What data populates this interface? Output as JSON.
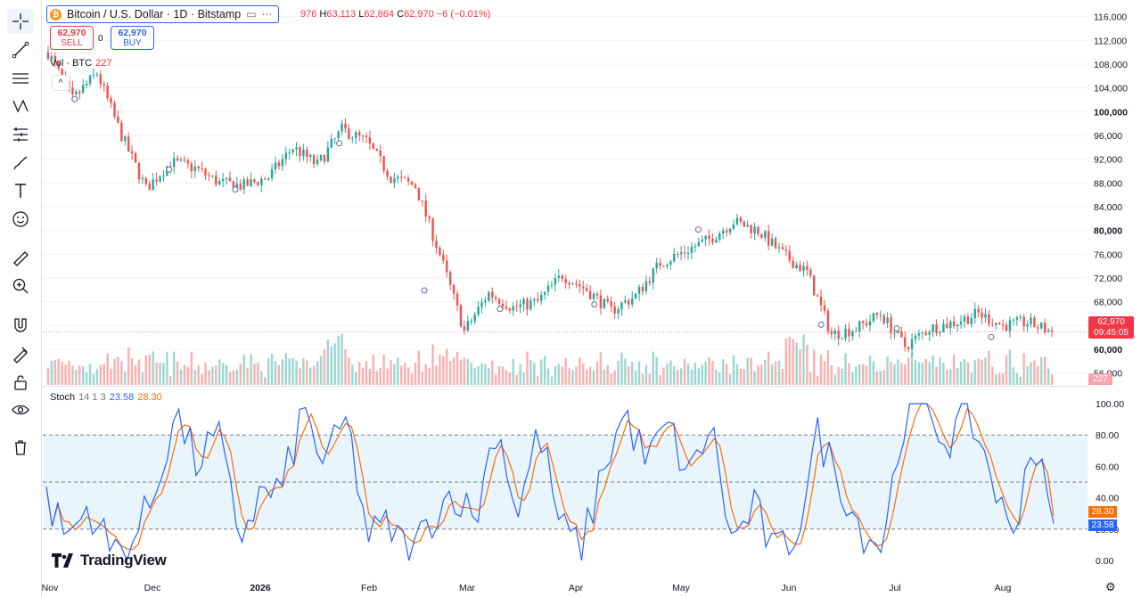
{
  "symbol": {
    "title": "Bitcoin / U.S. Dollar · 1D · Bitstamp",
    "coin_icon": "bitcoin-icon",
    "ohlc": {
      "o_label": "",
      "o": "976",
      "h_label": "H",
      "h": "63,113",
      "l_label": "L",
      "l": "62,864",
      "c_label": "C",
      "c": "62,970",
      "change": "−6 (−0.01%)"
    }
  },
  "trade": {
    "sell_price": "62,970",
    "sell_label": "SELL",
    "buy_price": "62,970",
    "buy_label": "BUY",
    "spread": "0"
  },
  "volume_legend": {
    "label": "Vol · BTC",
    "value": "227"
  },
  "stoch_legend": {
    "label": "Stoch",
    "params": "14 1 3",
    "k_value": "23.58",
    "d_value": "28.30"
  },
  "badges": {
    "price": "62,970",
    "countdown": "09:45:05",
    "volume": "227",
    "k": "23.58",
    "d": "28.30"
  },
  "brand": "TradingView",
  "toolbar_icons": [
    "crosshair-icon",
    "trend-line-icon",
    "fib-icon",
    "pattern-icon",
    "measure-tools-icon",
    "brush-icon",
    "text-icon",
    "emoji-icon",
    "ruler-icon",
    "zoom-in-icon",
    "magnet-icon",
    "lock-drawings-icon",
    "lock-icon",
    "eye-icon",
    "trash-icon"
  ],
  "colors": {
    "up": "#26a69a",
    "down": "#ef5350",
    "k_line": "#2962ff",
    "d_line": "#ff6d00",
    "band": "#e3f2fd",
    "grid": "#f0f3fa"
  },
  "chart_data": {
    "type": "candlestick",
    "timeframe": "1D",
    "price_axis": {
      "ticks": [
        "116,000",
        "112,000",
        "108,000",
        "104,000",
        "100,000",
        "96,000",
        "92,000",
        "88,000",
        "84,000",
        "80,000",
        "76,000",
        "72,000",
        "68,000",
        "64,000",
        "60,000",
        "56,000"
      ],
      "range": [
        54000,
        117000
      ]
    },
    "time_axis": {
      "labels": [
        "Nov",
        "Dec",
        "2026",
        "Feb",
        "Mar",
        "Apr",
        "May",
        "Jun",
        "Jul",
        "Aug"
      ]
    },
    "price_path": [
      {
        "date": "Nov",
        "price": 110000
      },
      {
        "date": "Nov",
        "price": 102000
      },
      {
        "date": "Nov",
        "price": 106500
      },
      {
        "date": "Nov",
        "price": 96000
      },
      {
        "date": "Nov",
        "price": 87000
      },
      {
        "date": "Dec",
        "price": 91500
      },
      {
        "date": "Dec",
        "price": 90500
      },
      {
        "date": "Dec",
        "price": 88000
      },
      {
        "date": "Dec",
        "price": 87500
      },
      {
        "date": "2026",
        "price": 89000
      },
      {
        "date": "2026",
        "price": 94000
      },
      {
        "date": "2026",
        "price": 91000
      },
      {
        "date": "2026",
        "price": 97000
      },
      {
        "date": "2026",
        "price": 95000
      },
      {
        "date": "2026",
        "price": 89000
      },
      {
        "date": "2026",
        "price": 87500
      },
      {
        "date": "Feb",
        "price": 76000
      },
      {
        "date": "Feb",
        "price": 63000
      },
      {
        "date": "Feb",
        "price": 69500
      },
      {
        "date": "Feb",
        "price": 67000
      },
      {
        "date": "Mar",
        "price": 68000
      },
      {
        "date": "Mar",
        "price": 72500
      },
      {
        "date": "Mar",
        "price": 70000
      },
      {
        "date": "Mar",
        "price": 66500
      },
      {
        "date": "Apr",
        "price": 69000
      },
      {
        "date": "Apr",
        "price": 74500
      },
      {
        "date": "Apr",
        "price": 76500
      },
      {
        "date": "Apr",
        "price": 78500
      },
      {
        "date": "May",
        "price": 81500
      },
      {
        "date": "May",
        "price": 80000
      },
      {
        "date": "May",
        "price": 76000
      },
      {
        "date": "May",
        "price": 73000
      },
      {
        "date": "Jun",
        "price": 62500
      },
      {
        "date": "Jun",
        "price": 63500
      },
      {
        "date": "Jun",
        "price": 66000
      },
      {
        "date": "Jun",
        "price": 60500
      },
      {
        "date": "Jul",
        "price": 63500
      },
      {
        "date": "Jul",
        "price": 64500
      },
      {
        "date": "Jul",
        "price": 66000
      },
      {
        "date": "Jul",
        "price": 64000
      },
      {
        "date": "Aug",
        "price": 64500
      },
      {
        "date": "Aug",
        "price": 62970
      }
    ],
    "volume_series": {
      "name": "Vol · BTC",
      "last": 227
    },
    "stochastic": {
      "params": [
        14,
        1,
        3
      ],
      "levels": [
        80,
        50,
        20
      ],
      "range": [
        0,
        100
      ],
      "ticks": [
        "100.00",
        "80.00",
        "60.00",
        "40.00",
        "20.00",
        "0.00"
      ],
      "k_path": [
        {
          "date": "Nov",
          "k": 38
        },
        {
          "date": "Nov",
          "k": 15
        },
        {
          "date": "Nov",
          "k": 35
        },
        {
          "date": "Nov",
          "k": 6
        },
        {
          "date": "Nov",
          "k": 12
        },
        {
          "date": "Dec",
          "k": 40
        },
        {
          "date": "Dec",
          "k": 95
        },
        {
          "date": "Dec",
          "k": 62
        },
        {
          "date": "Dec",
          "k": 80
        },
        {
          "date": "Dec",
          "k": 15
        },
        {
          "date": "2026",
          "k": 42
        },
        {
          "date": "2026",
          "k": 45
        },
        {
          "date": "2026",
          "k": 96
        },
        {
          "date": "2026",
          "k": 60
        },
        {
          "date": "2026",
          "k": 90
        },
        {
          "date": "2026",
          "k": 15
        },
        {
          "date": "Feb",
          "k": 22
        },
        {
          "date": "Feb",
          "k": 4
        },
        {
          "date": "Feb",
          "k": 28
        },
        {
          "date": "Feb",
          "k": 45
        },
        {
          "date": "Mar",
          "k": 25
        },
        {
          "date": "Mar",
          "k": 88
        },
        {
          "date": "Mar",
          "k": 30
        },
        {
          "date": "Mar",
          "k": 84
        },
        {
          "date": "Mar",
          "k": 20
        },
        {
          "date": "Apr",
          "k": 8
        },
        {
          "date": "Apr",
          "k": 60
        },
        {
          "date": "Apr",
          "k": 94
        },
        {
          "date": "Apr",
          "k": 62
        },
        {
          "date": "Apr",
          "k": 86
        },
        {
          "date": "May",
          "k": 52
        },
        {
          "date": "May",
          "k": 88
        },
        {
          "date": "May",
          "k": 10
        },
        {
          "date": "May",
          "k": 35
        },
        {
          "date": "May",
          "k": 3
        },
        {
          "date": "Jun",
          "k": 18
        },
        {
          "date": "Jun",
          "k": 80
        },
        {
          "date": "Jun",
          "k": 52
        },
        {
          "date": "Jun",
          "k": 20
        },
        {
          "date": "Jul",
          "k": 10
        },
        {
          "date": "Jul",
          "k": 90
        },
        {
          "date": "Jul",
          "k": 100
        },
        {
          "date": "Jul",
          "k": 75
        },
        {
          "date": "Jul",
          "k": 95
        },
        {
          "date": "Aug",
          "k": 60
        },
        {
          "date": "Aug",
          "k": 12
        },
        {
          "date": "Aug",
          "k": 78
        },
        {
          "date": "Aug",
          "k": 23.58
        }
      ],
      "k_last": 23.58,
      "d_last": 28.3
    }
  }
}
